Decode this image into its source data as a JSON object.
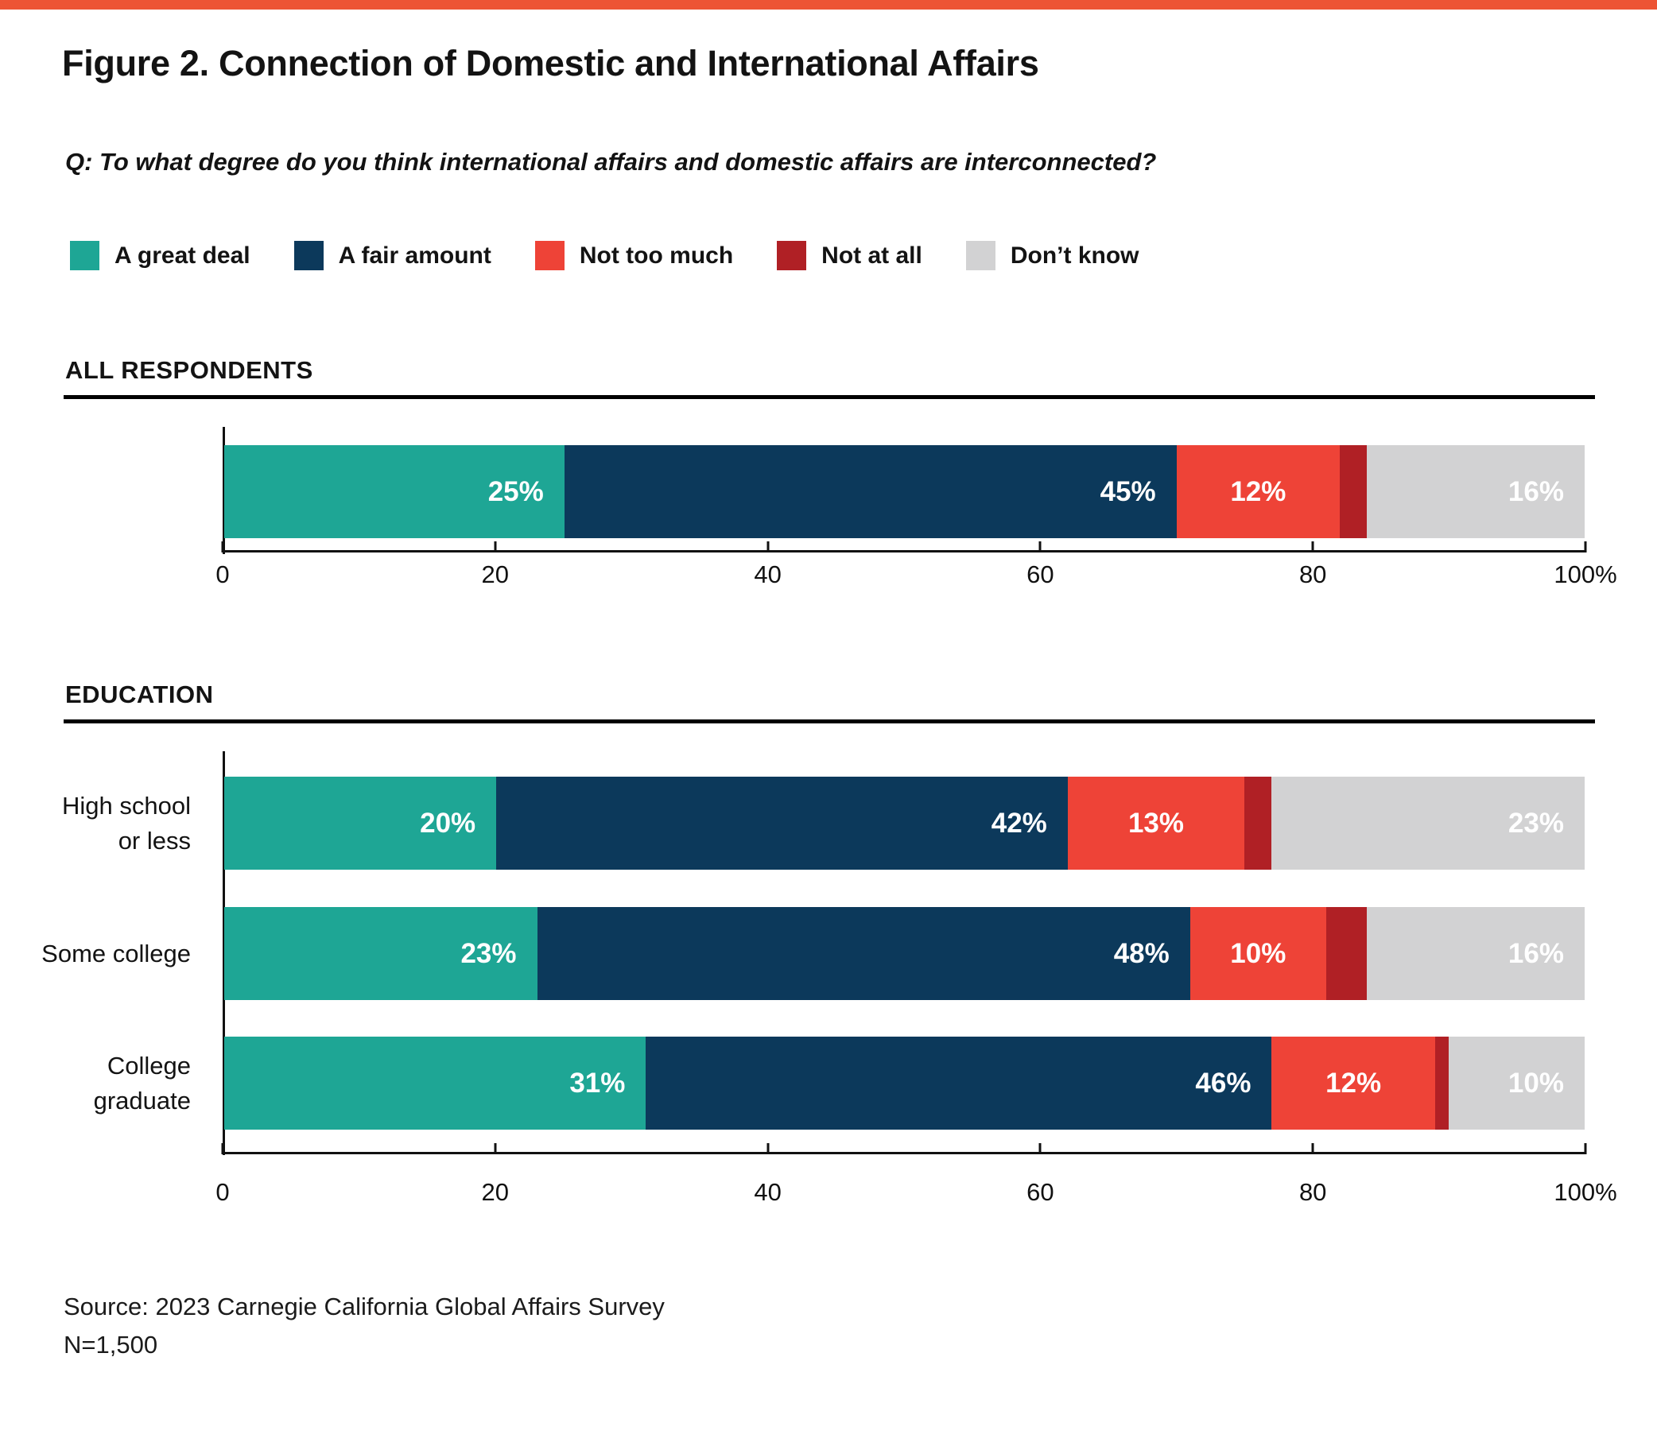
{
  "page": {
    "figure_title": "Figure 2. Connection of Domestic and International Affairs",
    "question": "Q: To what degree do you think international affairs and domestic affairs are interconnected?",
    "source": "Source: 2023 Carnegie California Global Affairs Survey",
    "sample_size": "N=1,500"
  },
  "colors": {
    "accent_topbar": "#ED5434",
    "a_great_deal": "#1EA695",
    "a_fair_amount": "#0C395B",
    "not_too_much": "#EE4337",
    "not_at_all": "#B02025",
    "dont_know": "#D2D2D3"
  },
  "legend": [
    {
      "label": "A great deal",
      "color_key": "a_great_deal"
    },
    {
      "label": "A fair amount",
      "color_key": "a_fair_amount"
    },
    {
      "label": "Not too much",
      "color_key": "not_too_much"
    },
    {
      "label": "Not at all",
      "color_key": "not_at_all"
    },
    {
      "label": "Don’t know",
      "color_key": "dont_know"
    }
  ],
  "chart_data": [
    {
      "type": "bar",
      "orientation": "horizontal",
      "stacked": true,
      "section_label": "ALL RESPONDENTS",
      "categories": [
        []
      ],
      "series": [
        {
          "name": "A great deal",
          "color_key": "a_great_deal",
          "label_align": "right",
          "values": [
            25
          ]
        },
        {
          "name": "A fair amount",
          "color_key": "a_fair_amount",
          "label_align": "right",
          "values": [
            45
          ]
        },
        {
          "name": "Not too much",
          "color_key": "not_too_much",
          "label_align": "center",
          "values": [
            12
          ]
        },
        {
          "name": "Not at all",
          "color_key": "not_at_all",
          "label_align": "none",
          "values": [
            2
          ]
        },
        {
          "name": "Don’t know",
          "color_key": "dont_know",
          "label_align": "right",
          "values": [
            16
          ]
        }
      ],
      "x_ticks": [
        "0",
        "20",
        "40",
        "60",
        "80",
        "100%"
      ],
      "xlim": [
        0,
        100
      ],
      "value_suffix": "%",
      "grid": false,
      "legend_position": "top"
    },
    {
      "type": "bar",
      "orientation": "horizontal",
      "stacked": true,
      "section_label": "EDUCATION",
      "categories": [
        [
          "High school",
          "or less"
        ],
        [
          "Some college"
        ],
        [
          "College",
          "graduate"
        ]
      ],
      "series": [
        {
          "name": "A great deal",
          "color_key": "a_great_deal",
          "label_align": "right",
          "values": [
            20,
            23,
            31
          ]
        },
        {
          "name": "A fair amount",
          "color_key": "a_fair_amount",
          "label_align": "right",
          "values": [
            42,
            48,
            46
          ]
        },
        {
          "name": "Not too much",
          "color_key": "not_too_much",
          "label_align": "center",
          "values": [
            13,
            10,
            12
          ]
        },
        {
          "name": "Not at all",
          "color_key": "not_at_all",
          "label_align": "none",
          "values": [
            2,
            3,
            1
          ]
        },
        {
          "name": "Don’t know",
          "color_key": "dont_know",
          "label_align": "right",
          "values": [
            23,
            16,
            10
          ]
        }
      ],
      "x_ticks": [
        "0",
        "20",
        "40",
        "60",
        "80",
        "100%"
      ],
      "xlim": [
        0,
        100
      ],
      "value_suffix": "%",
      "grid": false,
      "legend_position": "top"
    }
  ]
}
